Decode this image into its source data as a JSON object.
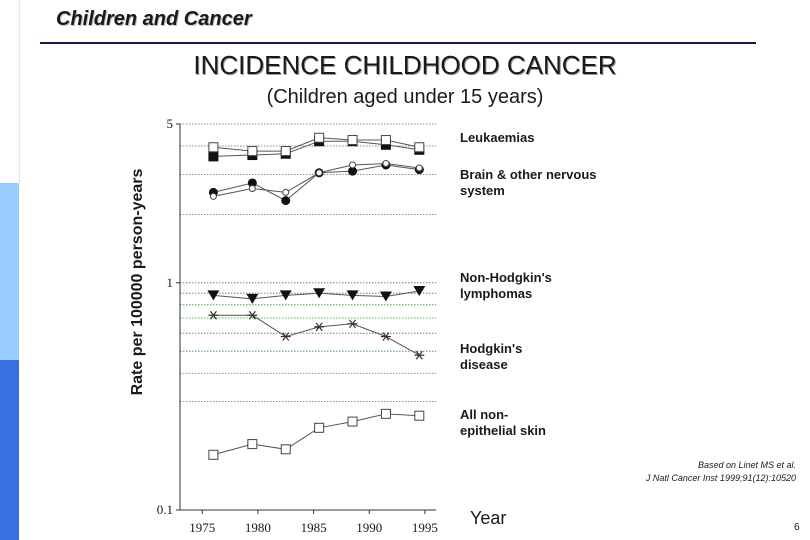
{
  "header": {
    "title": "Children and Cancer"
  },
  "chart_data": {
    "type": "line",
    "title": "INCIDENCE CHILDHOOD CANCER",
    "subtitle": "(Children aged under 15 years)",
    "ylabel": "Rate per 100000 person-years",
    "xlabel": "Year",
    "yscale": "log",
    "ylim": [
      0.1,
      5
    ],
    "xlim": [
      1973,
      1996
    ],
    "x_ticks": [
      1975,
      1980,
      1985,
      1990,
      1995
    ],
    "y_ticks": [
      0.1,
      1,
      5
    ],
    "y_tick_labels": [
      "0.1",
      "1",
      "5"
    ],
    "gridlines": [
      0.3,
      0.4,
      0.5,
      0.6,
      0.7,
      0.8,
      0.9,
      1,
      2,
      3,
      4,
      5
    ],
    "years": [
      1976,
      1979.5,
      1982.5,
      1985.5,
      1988.5,
      1991.5,
      1994.5
    ],
    "series": [
      {
        "label": "Leukaemias",
        "marker": "filled-square",
        "values": [
          3.6,
          3.65,
          3.7,
          4.2,
          4.2,
          4.05,
          3.85
        ]
      },
      {
        "label": "Leukaemias",
        "marker": "open-square",
        "values": [
          3.95,
          3.8,
          3.8,
          4.35,
          4.25,
          4.25,
          3.95
        ]
      },
      {
        "label": "Brain & other nervous system",
        "marker": "filled-circle",
        "values": [
          2.5,
          2.75,
          2.3,
          3.05,
          3.1,
          3.3,
          3.15
        ]
      },
      {
        "label": "Brain & other nervous system",
        "marker": "open-circle",
        "values": [
          2.4,
          2.6,
          2.5,
          3.05,
          3.3,
          3.35,
          3.2
        ]
      },
      {
        "label": "Non-Hodgkin's lymphomas",
        "marker": "filled-triangle",
        "values": [
          0.88,
          0.85,
          0.88,
          0.9,
          0.88,
          0.87,
          0.92
        ]
      },
      {
        "label": "Hodgkin's disease",
        "marker": "asterisk",
        "values": [
          0.72,
          0.72,
          0.58,
          0.64,
          0.66,
          0.58,
          0.48
        ]
      },
      {
        "label": "All non-epithelial skin",
        "marker": "open-square",
        "values": [
          0.175,
          0.195,
          0.185,
          0.23,
          0.245,
          0.265,
          0.26
        ]
      }
    ],
    "legend": {
      "leukaemias": "Leukaemias",
      "brain": "Brain & other nervous system",
      "nhl": "Non-Hodgkin's lymphomas",
      "hodgkin": "Hodgkin's disease",
      "skin": "All non-epithelial skin"
    },
    "source_line1": "Based on Linet MS et al.",
    "source_line2": "J Natl Cancer Inst 1999;91(12):10520"
  },
  "page_number": "6",
  "colors": {
    "sidebar_light": "#99ccff",
    "sidebar_dark": "#3a6fe0",
    "gridline": "#2e8b2e",
    "line": "#555555"
  }
}
